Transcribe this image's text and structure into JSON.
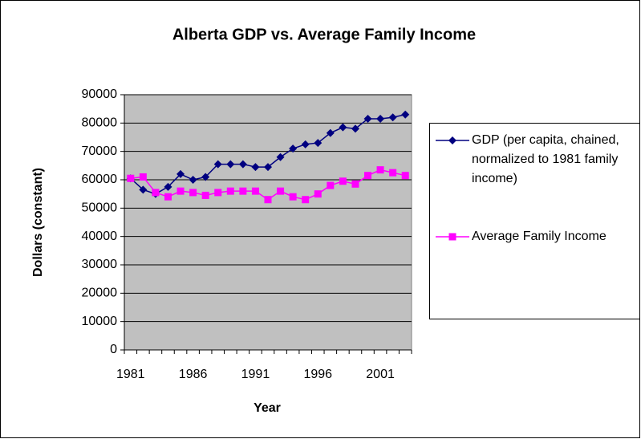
{
  "chart_data": {
    "type": "line",
    "title": "Alberta GDP vs. Average Family Income",
    "x_label": "Year",
    "y_label": "Dollars (constant)",
    "categories": [
      "1981",
      null,
      null,
      null,
      null,
      "1986",
      null,
      null,
      null,
      null,
      "1991",
      null,
      null,
      null,
      null,
      "1996",
      null,
      null,
      null,
      null,
      "2001",
      null,
      null
    ],
    "series": [
      {
        "name": "GDP (per capita, chained, normalized to 1981 family income)",
        "color": "#000080",
        "marker": "diamond",
        "values": [
          60500,
          56500,
          55000,
          57500,
          62000,
          60000,
          61000,
          65500,
          65500,
          65500,
          64500,
          64500,
          68000,
          71000,
          72500,
          73000,
          76500,
          78500,
          78000,
          81500,
          81500,
          82000,
          83000
        ]
      },
      {
        "name": "Average Family Income",
        "color": "#ff00ff",
        "marker": "square",
        "values": [
          60500,
          61000,
          55500,
          54000,
          56000,
          55500,
          54500,
          55500,
          56000,
          56000,
          56000,
          53000,
          56000,
          54000,
          53000,
          55000,
          58000,
          59500,
          58500,
          61500,
          63500,
          62500,
          61500
        ]
      }
    ],
    "ylim": [
      0,
      90000
    ],
    "yticks": [
      0,
      10000,
      20000,
      30000,
      40000,
      50000,
      60000,
      70000,
      80000,
      90000
    ],
    "grid": true,
    "plot_background": "#c0c0c0",
    "legend": "right"
  }
}
